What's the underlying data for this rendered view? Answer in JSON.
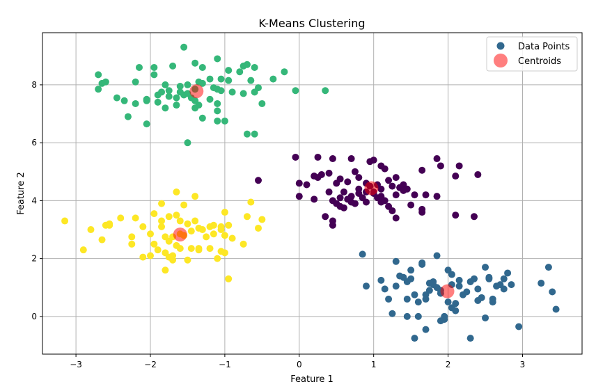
{
  "chart_data": {
    "type": "scatter",
    "title": "K-Means Clustering",
    "xlabel": "Feature 1",
    "ylabel": "Feature 2",
    "xlim": [
      -3.45,
      3.8
    ],
    "ylim": [
      -1.3,
      9.8
    ],
    "xticks": [
      -3,
      -2,
      -1,
      0,
      1,
      2,
      3
    ],
    "yticks": [
      0,
      2,
      4,
      6,
      8
    ],
    "grid": true,
    "legend": {
      "position": "top-right",
      "entries": [
        "Data Points",
        "Centroids"
      ]
    },
    "colors": {
      "cluster_purple": "#440154",
      "cluster_blue": "#31688e",
      "cluster_green": "#35b779",
      "cluster_yellow": "#fde725",
      "centroid": "#ff0000",
      "legend_marker": "#31688e",
      "grid": "#b0b0b0"
    },
    "series": [
      {
        "cluster": 0,
        "color": "#440154",
        "points": [
          [
            -0.05,
            5.5
          ],
          [
            0.25,
            5.5
          ],
          [
            0.45,
            5.45
          ],
          [
            0.7,
            5.45
          ],
          [
            0.95,
            5.35
          ],
          [
            1.0,
            5.4
          ],
          [
            1.15,
            5.1
          ],
          [
            1.3,
            4.8
          ],
          [
            1.1,
            5.2
          ],
          [
            1.65,
            5.05
          ],
          [
            1.85,
            5.45
          ],
          [
            1.9,
            5.2
          ],
          [
            2.15,
            5.2
          ],
          [
            2.1,
            4.85
          ],
          [
            2.4,
            4.9
          ],
          [
            0.0,
            4.6
          ],
          [
            0.1,
            4.55
          ],
          [
            0.2,
            4.85
          ],
          [
            0.25,
            4.8
          ],
          [
            0.3,
            4.9
          ],
          [
            0.4,
            4.95
          ],
          [
            0.5,
            4.6
          ],
          [
            0.55,
            4.75
          ],
          [
            0.65,
            4.65
          ],
          [
            0.8,
            4.8
          ],
          [
            0.75,
            5.0
          ],
          [
            0.9,
            4.6
          ],
          [
            0.95,
            4.5
          ],
          [
            1.05,
            4.55
          ],
          [
            1.1,
            4.4
          ],
          [
            1.2,
            4.7
          ],
          [
            1.25,
            4.5
          ],
          [
            1.35,
            4.45
          ],
          [
            1.4,
            4.55
          ],
          [
            1.45,
            4.4
          ],
          [
            1.55,
            4.2
          ],
          [
            1.7,
            4.2
          ],
          [
            1.85,
            4.15
          ],
          [
            -0.55,
            4.7
          ],
          [
            0.0,
            4.15
          ],
          [
            0.2,
            4.05
          ],
          [
            0.4,
            4.3
          ],
          [
            0.45,
            4.0
          ],
          [
            0.55,
            4.1
          ],
          [
            0.6,
            4.3
          ],
          [
            0.65,
            4.05
          ],
          [
            0.7,
            4.15
          ],
          [
            0.75,
            3.9
          ],
          [
            0.8,
            4.25
          ],
          [
            0.85,
            4.1
          ],
          [
            0.9,
            4.3
          ],
          [
            1.0,
            4.25
          ],
          [
            1.05,
            4.1
          ],
          [
            1.1,
            4.15
          ],
          [
            1.15,
            4.0
          ],
          [
            1.2,
            3.8
          ],
          [
            1.3,
            4.2
          ],
          [
            1.4,
            4.35
          ],
          [
            0.35,
            3.45
          ],
          [
            0.45,
            3.3
          ],
          [
            0.5,
            3.9
          ],
          [
            0.6,
            3.75
          ],
          [
            0.7,
            3.95
          ],
          [
            0.9,
            3.95
          ],
          [
            1.1,
            3.95
          ],
          [
            1.25,
            3.65
          ],
          [
            1.3,
            3.4
          ],
          [
            1.5,
            3.85
          ],
          [
            1.65,
            3.6
          ],
          [
            1.65,
            3.7
          ],
          [
            2.1,
            3.5
          ],
          [
            2.35,
            3.45
          ],
          [
            0.45,
            3.15
          ],
          [
            0.55,
            3.8
          ],
          [
            0.8,
            4.4
          ],
          [
            1.0,
            4.3
          ]
        ]
      },
      {
        "cluster": 1,
        "color": "#31688e",
        "points": [
          [
            0.85,
            2.15
          ],
          [
            0.9,
            1.05
          ],
          [
            1.1,
            1.25
          ],
          [
            1.15,
            0.95
          ],
          [
            1.2,
            0.6
          ],
          [
            1.25,
            0.1
          ],
          [
            1.3,
            1.05
          ],
          [
            1.3,
            1.9
          ],
          [
            1.35,
            1.4
          ],
          [
            1.4,
            1.35
          ],
          [
            1.45,
            1.2
          ],
          [
            1.45,
            0.6
          ],
          [
            1.5,
            1.6
          ],
          [
            1.5,
            1.3
          ],
          [
            1.55,
            0.75
          ],
          [
            1.6,
            0.0
          ],
          [
            1.6,
            0.5
          ],
          [
            1.65,
            1.85
          ],
          [
            1.65,
            1.8
          ],
          [
            1.7,
            0.6
          ],
          [
            1.7,
            0.75
          ],
          [
            1.7,
            -0.45
          ],
          [
            1.75,
            0.9
          ],
          [
            1.75,
            1.15
          ],
          [
            1.8,
            1.1
          ],
          [
            1.8,
            1.2
          ],
          [
            1.85,
            2.1
          ],
          [
            1.85,
            1.0
          ],
          [
            1.9,
            0.8
          ],
          [
            1.9,
            0.9
          ],
          [
            1.95,
            0.0
          ],
          [
            1.95,
            -0.1
          ],
          [
            2.0,
            1.6
          ],
          [
            2.0,
            0.5
          ],
          [
            2.05,
            1.45
          ],
          [
            2.05,
            1.1
          ],
          [
            2.1,
            0.45
          ],
          [
            2.1,
            0.2
          ],
          [
            2.15,
            1.05
          ],
          [
            2.15,
            1.25
          ],
          [
            2.2,
            0.75
          ],
          [
            2.25,
            0.85
          ],
          [
            2.3,
            1.2
          ],
          [
            2.35,
            1.3
          ],
          [
            2.4,
            0.95
          ],
          [
            2.4,
            0.55
          ],
          [
            2.45,
            0.65
          ],
          [
            2.5,
            -0.05
          ],
          [
            2.5,
            1.7
          ],
          [
            2.55,
            1.3
          ],
          [
            2.55,
            1.35
          ],
          [
            2.6,
            0.6
          ],
          [
            2.6,
            0.5
          ],
          [
            2.65,
            1.05
          ],
          [
            2.7,
            1.1
          ],
          [
            2.75,
            0.95
          ],
          [
            2.75,
            1.3
          ],
          [
            2.8,
            1.5
          ],
          [
            2.85,
            1.1
          ],
          [
            1.55,
            -0.75
          ],
          [
            2.3,
            -0.75
          ],
          [
            2.95,
            -0.35
          ],
          [
            3.25,
            1.15
          ],
          [
            3.35,
            1.7
          ],
          [
            3.4,
            0.85
          ],
          [
            3.45,
            0.25
          ],
          [
            1.45,
            0.0
          ],
          [
            2.05,
            0.3
          ],
          [
            1.9,
            -0.15
          ]
        ]
      },
      {
        "cluster": 2,
        "color": "#35b779",
        "points": [
          [
            -1.55,
            9.3
          ],
          [
            -1.4,
            8.75
          ],
          [
            -1.3,
            8.6
          ],
          [
            -1.1,
            8.9
          ],
          [
            -0.95,
            8.5
          ],
          [
            -0.7,
            8.7
          ],
          [
            -0.75,
            8.65
          ],
          [
            -0.6,
            8.6
          ],
          [
            -0.2,
            8.45
          ],
          [
            -2.15,
            8.6
          ],
          [
            -1.95,
            8.6
          ],
          [
            -1.7,
            8.65
          ],
          [
            -2.7,
            8.35
          ],
          [
            -2.65,
            8.05
          ],
          [
            -2.6,
            8.1
          ],
          [
            -2.2,
            8.1
          ],
          [
            -1.95,
            8.35
          ],
          [
            -1.8,
            8.0
          ],
          [
            -1.75,
            7.8
          ],
          [
            -1.6,
            7.95
          ],
          [
            -1.5,
            8.0
          ],
          [
            -1.4,
            7.85
          ],
          [
            -1.35,
            8.1
          ],
          [
            -1.3,
            8.05
          ],
          [
            -1.2,
            8.2
          ],
          [
            -1.15,
            7.9
          ],
          [
            -1.1,
            7.85
          ],
          [
            -1.05,
            8.2
          ],
          [
            -0.95,
            8.15
          ],
          [
            -0.8,
            8.45
          ],
          [
            -0.65,
            8.15
          ],
          [
            -0.55,
            7.9
          ],
          [
            -0.35,
            8.2
          ],
          [
            -0.05,
            7.8
          ],
          [
            0.35,
            7.8
          ],
          [
            -2.7,
            7.85
          ],
          [
            -2.45,
            7.55
          ],
          [
            -2.35,
            7.45
          ],
          [
            -2.2,
            7.35
          ],
          [
            -2.05,
            7.5
          ],
          [
            -1.9,
            7.65
          ],
          [
            -1.85,
            7.75
          ],
          [
            -1.75,
            7.6
          ],
          [
            -1.65,
            7.55
          ],
          [
            -1.55,
            7.65
          ],
          [
            -1.5,
            7.7
          ],
          [
            -1.45,
            7.55
          ],
          [
            -1.4,
            7.45
          ],
          [
            -1.35,
            7.3
          ],
          [
            -1.2,
            7.5
          ],
          [
            -1.1,
            7.35
          ],
          [
            -1.05,
            7.8
          ],
          [
            -0.9,
            7.75
          ],
          [
            -0.75,
            7.7
          ],
          [
            -0.6,
            7.75
          ],
          [
            -0.5,
            7.35
          ],
          [
            -2.3,
            6.9
          ],
          [
            -2.05,
            6.65
          ],
          [
            -1.9,
            7.4
          ],
          [
            -1.8,
            7.2
          ],
          [
            -1.65,
            7.3
          ],
          [
            -1.4,
            7.2
          ],
          [
            -1.3,
            6.85
          ],
          [
            -1.1,
            7.1
          ],
          [
            -1.1,
            6.75
          ],
          [
            -1.0,
            6.75
          ],
          [
            -0.7,
            6.3
          ],
          [
            -0.6,
            6.3
          ],
          [
            -1.5,
            6.0
          ],
          [
            -2.05,
            7.45
          ],
          [
            -1.6,
            7.75
          ]
        ]
      },
      {
        "cluster": 3,
        "color": "#fde725",
        "points": [
          [
            -1.65,
            4.3
          ],
          [
            -1.4,
            4.15
          ],
          [
            -1.85,
            3.9
          ],
          [
            -1.55,
            3.85
          ],
          [
            -0.65,
            3.95
          ],
          [
            -2.55,
            3.2
          ],
          [
            -2.4,
            3.4
          ],
          [
            -2.2,
            3.4
          ],
          [
            -2.1,
            3.1
          ],
          [
            -1.95,
            3.55
          ],
          [
            -1.85,
            3.3
          ],
          [
            -1.75,
            3.45
          ],
          [
            -1.65,
            3.5
          ],
          [
            -1.6,
            3.3
          ],
          [
            -1.5,
            3.2
          ],
          [
            -1.4,
            3.3
          ],
          [
            -1.3,
            3.0
          ],
          [
            -1.2,
            3.1
          ],
          [
            -1.15,
            3.15
          ],
          [
            -1.05,
            3.1
          ],
          [
            -1.0,
            3.6
          ],
          [
            -0.95,
            3.15
          ],
          [
            -0.7,
            3.45
          ],
          [
            -0.5,
            3.35
          ],
          [
            -0.55,
            3.05
          ],
          [
            -3.15,
            3.3
          ],
          [
            -2.8,
            3.0
          ],
          [
            -2.6,
            3.15
          ],
          [
            -2.55,
            3.15
          ],
          [
            -2.65,
            2.65
          ],
          [
            -2.25,
            2.75
          ],
          [
            -2.0,
            2.85
          ],
          [
            -1.85,
            3.1
          ],
          [
            -1.8,
            2.75
          ],
          [
            -1.75,
            2.6
          ],
          [
            -1.7,
            2.75
          ],
          [
            -1.6,
            2.85
          ],
          [
            -1.55,
            2.8
          ],
          [
            -1.45,
            2.95
          ],
          [
            -1.35,
            3.05
          ],
          [
            -1.25,
            2.75
          ],
          [
            -1.15,
            2.85
          ],
          [
            -1.05,
            3.0
          ],
          [
            -1.0,
            2.8
          ],
          [
            -0.9,
            2.7
          ],
          [
            -0.75,
            2.5
          ],
          [
            -2.9,
            2.3
          ],
          [
            -2.25,
            2.5
          ],
          [
            -2.1,
            2.05
          ],
          [
            -2.0,
            2.1
          ],
          [
            -1.95,
            2.5
          ],
          [
            -1.9,
            2.3
          ],
          [
            -1.8,
            2.2
          ],
          [
            -1.75,
            2.05
          ],
          [
            -1.7,
            2.1
          ],
          [
            -1.65,
            2.45
          ],
          [
            -1.6,
            2.35
          ],
          [
            -1.45,
            2.35
          ],
          [
            -1.35,
            2.35
          ],
          [
            -1.35,
            2.3
          ],
          [
            -1.2,
            2.35
          ],
          [
            -1.1,
            2.0
          ],
          [
            -1.05,
            2.25
          ],
          [
            -1.0,
            2.2
          ],
          [
            -1.5,
            1.95
          ],
          [
            -1.7,
            1.95
          ],
          [
            -1.8,
            1.6
          ],
          [
            -0.95,
            1.3
          ]
        ]
      }
    ],
    "centroids": [
      [
        0.97,
        4.43
      ],
      [
        1.99,
        0.87
      ],
      [
        -1.38,
        7.78
      ],
      [
        -1.6,
        2.83
      ]
    ]
  }
}
